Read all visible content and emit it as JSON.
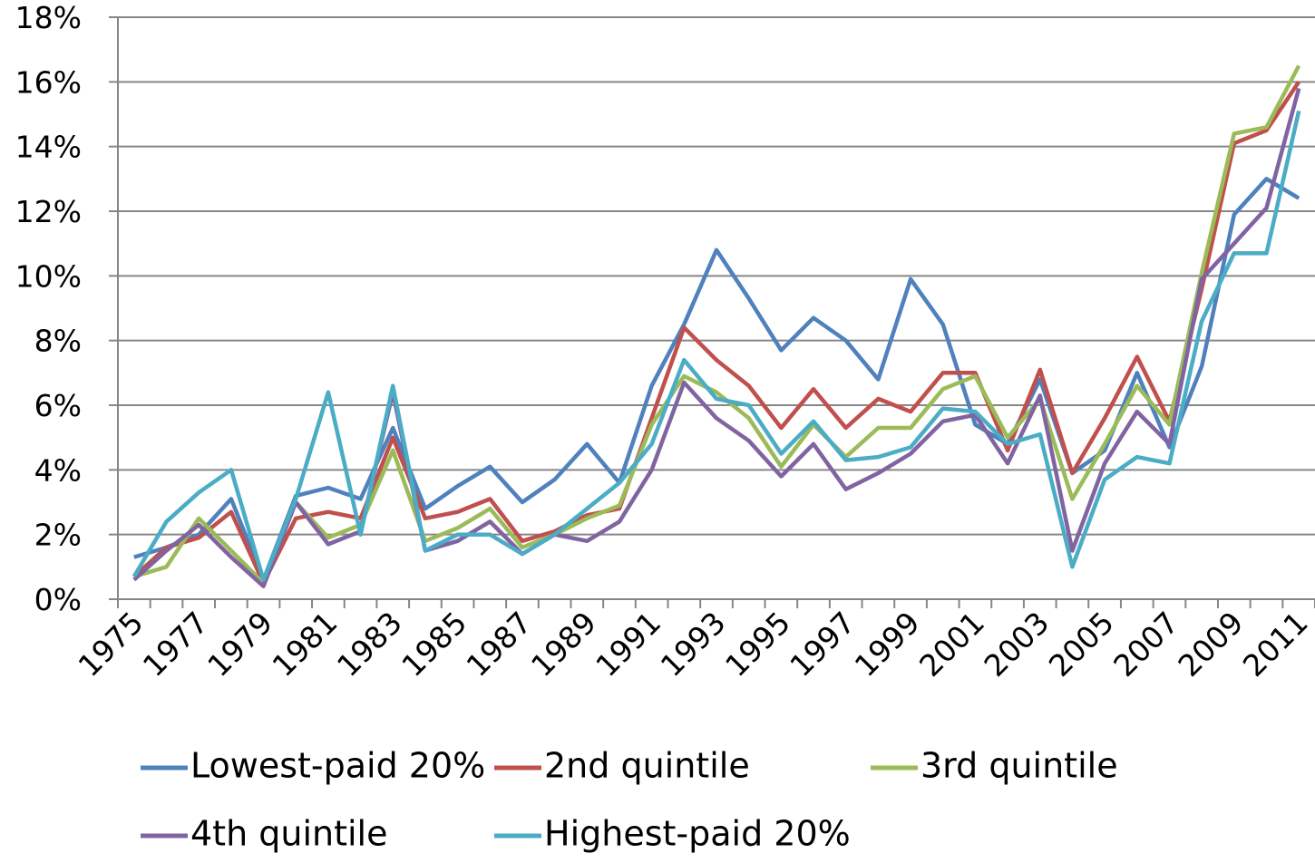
{
  "chart_data": {
    "type": "line",
    "categories": [
      "1975",
      null,
      "1977",
      null,
      "1979",
      null,
      "1981",
      null,
      "1983",
      null,
      "1985",
      null,
      "1987",
      null,
      "1989",
      null,
      "1991",
      null,
      "1993",
      null,
      "1995",
      null,
      "1997",
      null,
      "1999",
      null,
      "2001",
      null,
      "2003",
      null,
      "2005",
      null,
      "2007",
      null,
      "2009",
      null,
      "2011"
    ],
    "series": [
      {
        "name": "Lowest-paid 20%",
        "color": "#4f81bd",
        "values": [
          1.3,
          1.6,
          2.0,
          3.1,
          0.6,
          3.2,
          3.45,
          3.1,
          5.3,
          2.8,
          3.5,
          4.1,
          3.0,
          3.7,
          4.8,
          3.6,
          6.6,
          8.5,
          10.8,
          9.3,
          7.7,
          8.7,
          8.0,
          6.8,
          9.9,
          8.5,
          5.4,
          4.8,
          6.8,
          3.9,
          4.6,
          7.0,
          4.7,
          7.2,
          11.9,
          13.0,
          12.4
        ]
      },
      {
        "name": "2nd quintile",
        "color": "#c0504d",
        "values": [
          0.7,
          1.6,
          1.9,
          2.7,
          0.5,
          2.5,
          2.7,
          2.5,
          5.0,
          2.5,
          2.7,
          3.1,
          1.8,
          2.1,
          2.6,
          2.8,
          5.6,
          8.4,
          7.4,
          6.6,
          5.3,
          6.5,
          5.3,
          6.2,
          5.8,
          7.0,
          7.0,
          4.6,
          7.1,
          3.9,
          5.6,
          7.5,
          5.5,
          9.6,
          14.1,
          14.5,
          16.0
        ]
      },
      {
        "name": "3rd quintile",
        "color": "#9bbb59",
        "values": [
          0.7,
          1.0,
          2.5,
          1.5,
          0.5,
          3.0,
          1.9,
          2.3,
          4.6,
          1.8,
          2.2,
          2.8,
          1.6,
          2.0,
          2.5,
          2.9,
          5.4,
          6.9,
          6.4,
          5.6,
          4.1,
          5.4,
          4.4,
          5.3,
          5.3,
          6.5,
          6.9,
          5.0,
          6.2,
          3.1,
          4.8,
          6.6,
          5.4,
          10.1,
          14.4,
          14.6,
          16.5
        ]
      },
      {
        "name": "4th quintile",
        "color": "#8064a2",
        "values": [
          0.6,
          1.5,
          2.3,
          1.3,
          0.4,
          3.0,
          1.7,
          2.1,
          6.4,
          1.5,
          1.8,
          2.4,
          1.4,
          2.0,
          1.8,
          2.4,
          4.0,
          6.7,
          5.6,
          4.9,
          3.8,
          4.8,
          3.4,
          3.9,
          4.5,
          5.5,
          5.7,
          4.2,
          6.3,
          1.5,
          4.2,
          5.8,
          4.8,
          9.9,
          11.0,
          12.1,
          15.8
        ]
      },
      {
        "name": "Highest-paid 20%",
        "color": "#4bacc6",
        "values": [
          0.7,
          2.4,
          3.3,
          4.0,
          0.6,
          3.1,
          6.4,
          2.0,
          6.6,
          1.5,
          2.0,
          2.0,
          1.4,
          2.0,
          2.8,
          3.6,
          4.8,
          7.4,
          6.2,
          6.0,
          4.5,
          5.5,
          4.3,
          4.4,
          4.7,
          5.9,
          5.8,
          4.8,
          5.1,
          1.0,
          3.7,
          4.4,
          4.2,
          8.6,
          10.7,
          10.7,
          15.1
        ]
      }
    ],
    "ylim": [
      0,
      18
    ],
    "yticks": [
      {
        "value": 0,
        "label": "0%"
      },
      {
        "value": 2,
        "label": "2%"
      },
      {
        "value": 4,
        "label": "4%"
      },
      {
        "value": 6,
        "label": "6%"
      },
      {
        "value": 8,
        "label": "8%"
      },
      {
        "value": 10,
        "label": "10%"
      },
      {
        "value": 12,
        "label": "12%"
      },
      {
        "value": 14,
        "label": "14%"
      },
      {
        "value": 16,
        "label": "16%"
      },
      {
        "value": 18,
        "label": "18%"
      }
    ],
    "grid": true,
    "legend": "bottom"
  }
}
